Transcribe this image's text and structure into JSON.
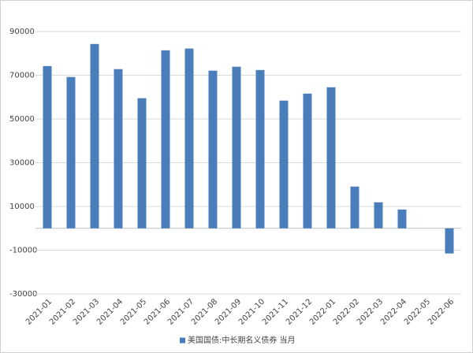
{
  "chart_data": {
    "type": "bar",
    "categories": [
      "2021-01",
      "2021-02",
      "2021-03",
      "2021-04",
      "2021-05",
      "2021-06",
      "2021-07",
      "2021-08",
      "2021-09",
      "2021-10",
      "2021-11",
      "2021-12",
      "2022-01",
      "2022-02",
      "2022-03",
      "2022-04",
      "2022-05",
      "2022-06"
    ],
    "series": [
      {
        "name": "美国国债:中长期名义债券 当月",
        "color": "#4a7ebb",
        "values": [
          74200,
          69200,
          84300,
          72800,
          59500,
          81400,
          82200,
          72100,
          73900,
          72400,
          58400,
          61600,
          64500,
          19100,
          11900,
          8600,
          0,
          -11500
        ]
      }
    ],
    "ylim": [
      -30000,
      90000
    ],
    "yticks": [
      -30000,
      -10000,
      10000,
      30000,
      50000,
      70000,
      90000
    ],
    "grid": true
  }
}
